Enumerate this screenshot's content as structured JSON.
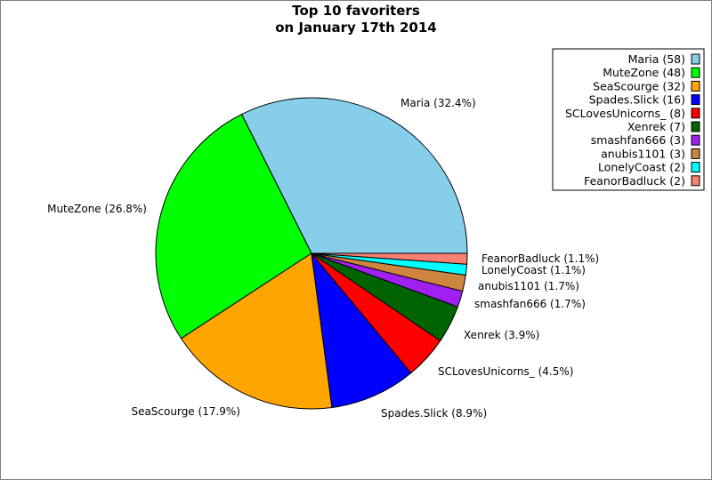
{
  "chart_data": {
    "type": "pie",
    "title_lines": [
      "Top 10 favoriters",
      "on January 17th 2014"
    ],
    "legend_position": "top-right",
    "slices": [
      {
        "name": "Maria",
        "value": 58,
        "percent_label": "32.4%",
        "color": "#87ceeb"
      },
      {
        "name": "MuteZone",
        "value": 48,
        "percent_label": "26.8%",
        "color": "#00ff00"
      },
      {
        "name": "SeaScourge",
        "value": 32,
        "percent_label": "17.9%",
        "color": "#ffa500"
      },
      {
        "name": "Spades.Slick",
        "value": 16,
        "percent_label": "8.9%",
        "color": "#0000ff"
      },
      {
        "name": "SCLovesUnicorns_",
        "value": 8,
        "percent_label": "4.5%",
        "color": "#ff0000"
      },
      {
        "name": "Xenrek",
        "value": 7,
        "percent_label": "3.9%",
        "color": "#006400"
      },
      {
        "name": "smashfan666",
        "value": 3,
        "percent_label": "1.7%",
        "color": "#a020f0"
      },
      {
        "name": "anubis1101",
        "value": 3,
        "percent_label": "1.7%",
        "color": "#cd853f"
      },
      {
        "name": "LonelyCoast",
        "value": 2,
        "percent_label": "1.1%",
        "color": "#00ffff"
      },
      {
        "name": "FeanorBadluck",
        "value": 2,
        "percent_label": "1.1%",
        "color": "#fa8072"
      }
    ]
  }
}
